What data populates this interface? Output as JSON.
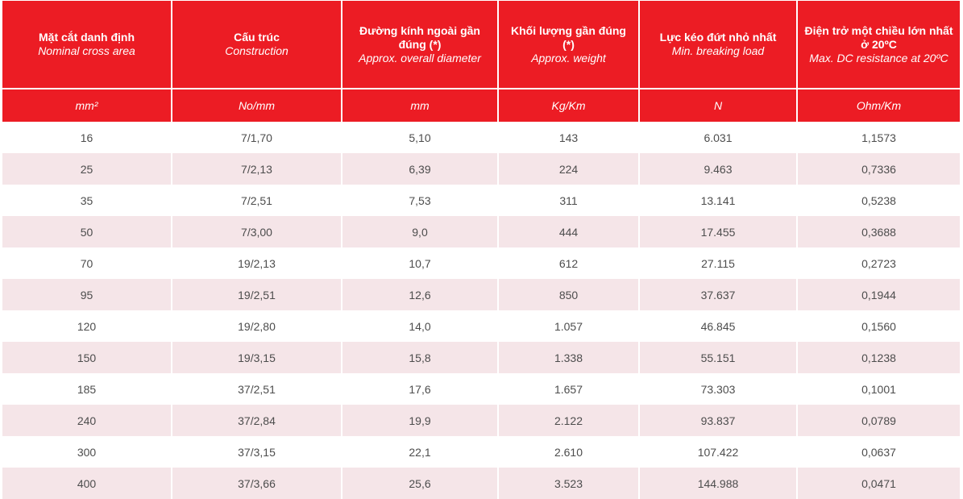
{
  "header": {
    "columns": [
      {
        "vi": "Mặt cắt danh định",
        "en": "Nominal cross area",
        "unit": "mm²"
      },
      {
        "vi": "Cấu trúc",
        "en": "Construction",
        "unit": "No/mm"
      },
      {
        "vi": "Đường kính ngoài gần đúng (*)",
        "en": "Approx. overall diameter",
        "unit": "mm"
      },
      {
        "vi": "Khối lượng gần đúng (*)",
        "en": "Approx. weight",
        "unit": "Kg/Km"
      },
      {
        "vi": "Lực kéo đứt nhỏ nhất",
        "en": "Min. breaking load",
        "unit": "N"
      },
      {
        "vi": "Điện trở một chiều  lớn nhất ở 20ºC",
        "en": "Max. DC resistance at 20ºC",
        "unit": "Ohm/Km"
      }
    ]
  },
  "rows": [
    [
      "16",
      "7/1,70",
      "5,10",
      "143",
      "6.031",
      "1,1573"
    ],
    [
      "25",
      "7/2,13",
      "6,39",
      "224",
      "9.463",
      "0,7336"
    ],
    [
      "35",
      "7/2,51",
      "7,53",
      "311",
      "13.141",
      "0,5238"
    ],
    [
      "50",
      "7/3,00",
      "9,0",
      "444",
      "17.455",
      "0,3688"
    ],
    [
      "70",
      "19/2,13",
      "10,7",
      "612",
      "27.115",
      "0,2723"
    ],
    [
      "95",
      "19/2,51",
      "12,6",
      "850",
      "37.637",
      "0,1944"
    ],
    [
      "120",
      "19/2,80",
      "14,0",
      "1.057",
      "46.845",
      "0,1560"
    ],
    [
      "150",
      "19/3,15",
      "15,8",
      "1.338",
      "55.151",
      "0,1238"
    ],
    [
      "185",
      "37/2,51",
      "17,6",
      "1.657",
      "73.303",
      "0,1001"
    ],
    [
      "240",
      "37/2,84",
      "19,9",
      "2.122",
      "93.837",
      "0,0789"
    ],
    [
      "300",
      "37/3,15",
      "22,1",
      "2.610",
      "107.422",
      "0,0637"
    ],
    [
      "400",
      "37/3,66",
      "25,6",
      "3.523",
      "144.988",
      "0,0471"
    ]
  ]
}
